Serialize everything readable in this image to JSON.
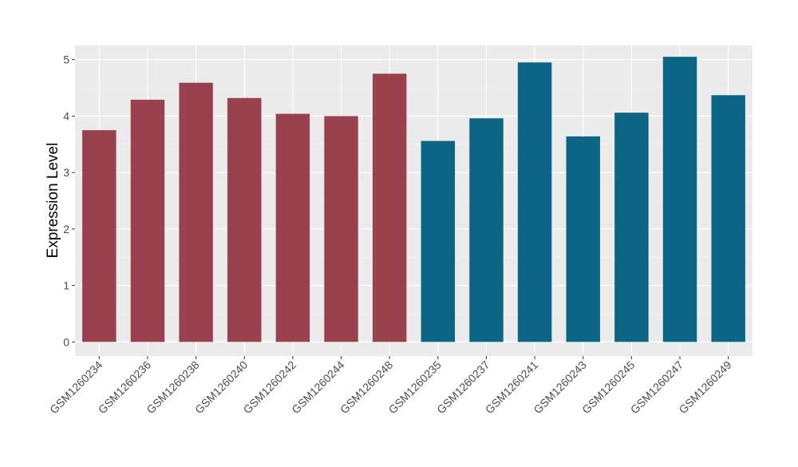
{
  "chart_data": {
    "type": "bar",
    "title": "",
    "xlabel": "",
    "ylabel": "Expression Level",
    "ylim": [
      -0.25,
      5.25
    ],
    "yticks": [
      0,
      1,
      2,
      3,
      4,
      5
    ],
    "grid": true,
    "legend": "none",
    "categories": [
      "GSM1260234",
      "GSM1260236",
      "GSM1260238",
      "GSM1260240",
      "GSM1260242",
      "GSM1260244",
      "GSM1260248",
      "GSM1260235",
      "GSM1260237",
      "GSM1260241",
      "GSM1260243",
      "GSM1260245",
      "GSM1260247",
      "GSM1260249"
    ],
    "values": [
      3.75,
      4.29,
      4.59,
      4.32,
      4.04,
      4.0,
      4.75,
      3.56,
      3.96,
      4.95,
      3.64,
      4.06,
      5.05,
      4.37
    ],
    "group_sizes": [
      7,
      7
    ],
    "group_colors": [
      "#99414f",
      "#0d6585"
    ],
    "colors": {
      "panel_background": "#ebebeb",
      "grid_major": "#ffffff",
      "grid_minor": "#f4f4f4",
      "tick_text": "#4d4d4d",
      "axis_title": "#000000"
    }
  }
}
